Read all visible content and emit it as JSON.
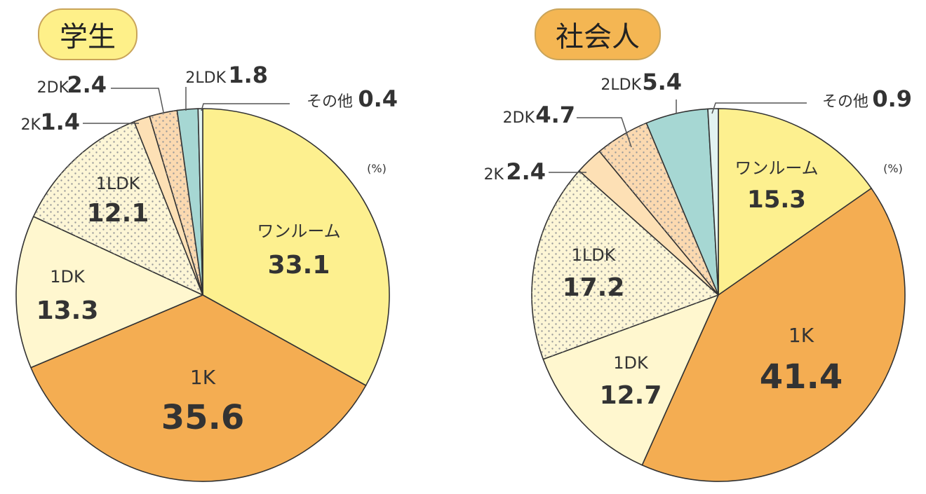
{
  "colors": {
    "one_room": "#fdf08f",
    "1K": "#f4ad52",
    "1DK": "#fff7cf",
    "1LDK": "#fdf6d6",
    "2K": "#fde0b5",
    "2DK": "#fbd9b0",
    "2LDK": "#a6d7d3",
    "other": "#e2f3f1",
    "badge_student": "#fef089",
    "badge_worker": "#f4b653",
    "stroke": "#333333",
    "leader": "#555555"
  },
  "chart_data": [
    {
      "type": "pie",
      "title": "学生",
      "unit": "(%)",
      "categories": [
        "ワンルーム",
        "1K",
        "1DK",
        "1LDK",
        "2K",
        "2DK",
        "2LDK",
        "その他"
      ],
      "values": [
        33.1,
        35.6,
        13.3,
        12.1,
        1.4,
        2.4,
        1.8,
        0.4
      ],
      "value_labels": [
        "33.1",
        "35.6",
        "13.3",
        "12.1",
        "1.4",
        "2.4",
        "1.8",
        "0.4"
      ]
    },
    {
      "type": "pie",
      "title": "社会人",
      "unit": "(%)",
      "categories": [
        "ワンルーム",
        "1K",
        "1DK",
        "1LDK",
        "2K",
        "2DK",
        "2LDK",
        "その他"
      ],
      "values": [
        15.3,
        41.4,
        12.7,
        17.2,
        2.4,
        4.7,
        5.4,
        0.9
      ],
      "value_labels": [
        "15.3",
        "41.4",
        "12.7",
        "17.2",
        "2.4",
        "4.7",
        "5.4",
        "0.9"
      ]
    }
  ]
}
